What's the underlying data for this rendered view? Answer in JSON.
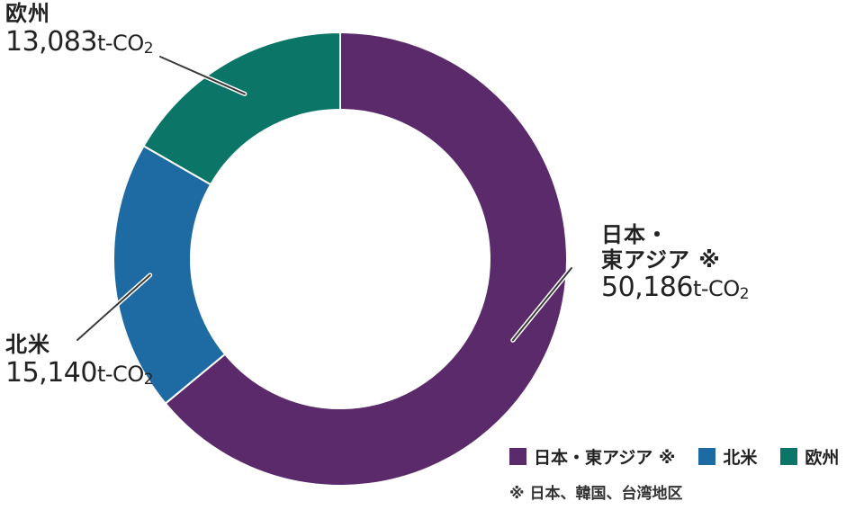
{
  "chart_data": {
    "type": "pie",
    "donut": true,
    "slices": [
      {
        "label": "日本・東アジア ※",
        "value": 50186,
        "value_text": "50,186",
        "color": "#5b2a6b"
      },
      {
        "label": "北米",
        "value": 15140,
        "value_text": "15,140",
        "color": "#1e6ba3"
      },
      {
        "label": "欧州",
        "value": 13083,
        "value_text": "13,083",
        "color": "#0b7567"
      }
    ],
    "unit_prefix": "t-CO",
    "unit_subscript": "2",
    "legend": {
      "placement": "bottom-right",
      "items": [
        "日本・東アジア ※",
        "北米",
        "欧州"
      ]
    },
    "footnote": "※ 日本、韓国、台湾地区"
  },
  "callouts": {
    "japan_line1": "日本・",
    "japan_line2": "東アジア ※",
    "na_name": "北米",
    "europe_name": "欧州"
  }
}
